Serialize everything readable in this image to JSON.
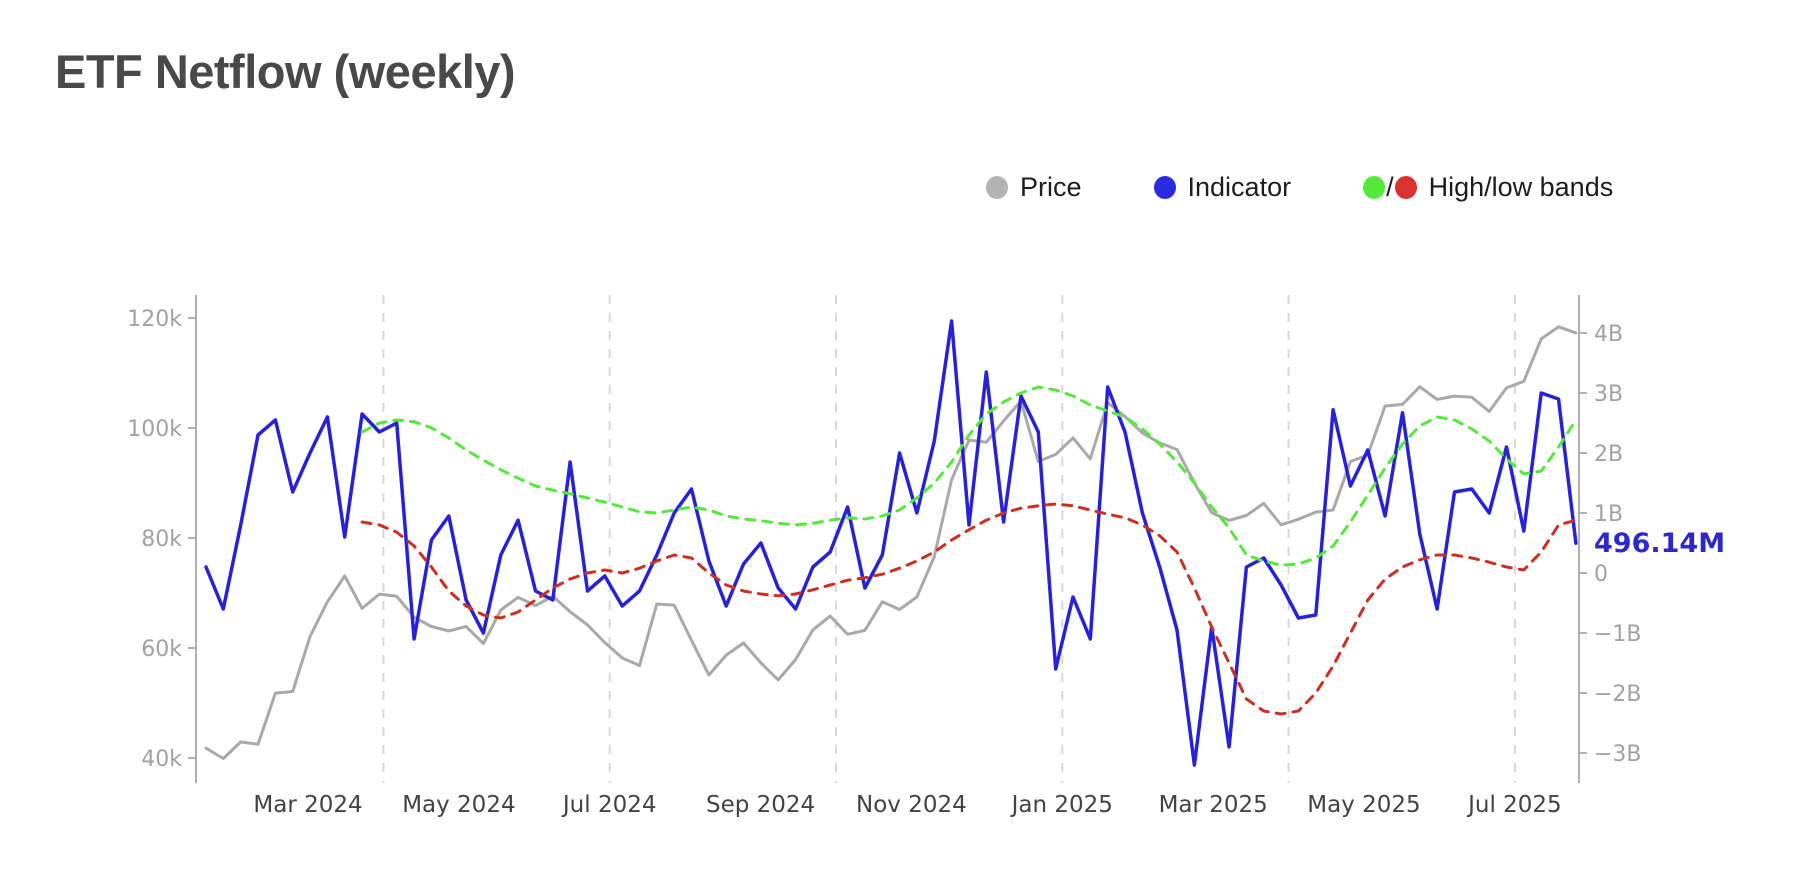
{
  "title": "ETF Netflow (weekly)",
  "legend": {
    "separator": "/",
    "items": [
      {
        "label": "Price",
        "color": "#b3b3b3"
      },
      {
        "label": "Indicator",
        "color": "#2a2ae0"
      },
      {
        "label": "High/low bands",
        "color_high": "#55e93c",
        "color_low": "#d93030"
      }
    ]
  },
  "chart_data": {
    "type": "line",
    "title": "ETF Netflow (weekly)",
    "x_unit": "week",
    "x_start": "2024-01-22",
    "x_step_days": 7,
    "n_points": 80,
    "grid": "vertical-dashed-quarterly",
    "legend_position": "top-right",
    "x_axis": {
      "labels": [
        {
          "text": "Mar 2024",
          "month": 0
        },
        {
          "text": "May 2024",
          "month": 2
        },
        {
          "text": "Jul 2024",
          "month": 4
        },
        {
          "text": "Sep 2024",
          "month": 6
        },
        {
          "text": "Nov 2024",
          "month": 8
        },
        {
          "text": "Jan 2025",
          "month": 10
        },
        {
          "text": "Mar 2025",
          "month": 12
        },
        {
          "text": "May 2025",
          "month": 14
        },
        {
          "text": "Jul 2025",
          "month": 16
        }
      ],
      "gridline_months": [
        1,
        4,
        7,
        10,
        13,
        16
      ]
    },
    "left_axis": {
      "unit": "USD (thousands)",
      "range": [
        40,
        120
      ],
      "ticks": [
        {
          "label": "120k",
          "value": 120
        },
        {
          "label": "100k",
          "value": 100
        },
        {
          "label": "80k",
          "value": 80
        },
        {
          "label": "60k",
          "value": 60
        },
        {
          "label": "40k",
          "value": 40
        }
      ]
    },
    "right_axis": {
      "unit": "USD (billions)",
      "range": [
        -3,
        4
      ],
      "ticks": [
        {
          "label": "4B",
          "value": 4
        },
        {
          "label": "3B",
          "value": 3
        },
        {
          "label": "2B",
          "value": 2
        },
        {
          "label": "1B",
          "value": 1
        },
        {
          "label": "0",
          "value": 0
        },
        {
          "label": "−1B",
          "value": -1
        },
        {
          "label": "−2B",
          "value": -2
        },
        {
          "label": "−3B",
          "value": -3
        }
      ],
      "current_value": 0.49614,
      "current_value_label": "496.14M"
    },
    "series": [
      {
        "name": "Price",
        "axis": "left",
        "color": "#a9a9a9",
        "style": "solid",
        "width": 3,
        "values": [
          41.8,
          39.9,
          42.9,
          42.5,
          51.8,
          52.1,
          62.1,
          68.4,
          73.1,
          67.2,
          69.8,
          69.4,
          65.6,
          63.9,
          63.1,
          63.9,
          60.8,
          66.9,
          69.2,
          67.7,
          69.4,
          66.6,
          64.2,
          61.0,
          58.2,
          56.8,
          68.0,
          67.8,
          61.4,
          55.1,
          58.7,
          60.9,
          57.3,
          54.2,
          57.9,
          63.3,
          65.8,
          62.5,
          63.2,
          68.4,
          67.0,
          69.3,
          76.6,
          90.6,
          97.8,
          97.4,
          101.3,
          104.9,
          93.9,
          95.2,
          98.2,
          94.4,
          104.6,
          102.1,
          99.1,
          97.3,
          96.1,
          90.0,
          84.6,
          83.2,
          84.1,
          86.3,
          82.4,
          83.4,
          84.7,
          85.1,
          93.9,
          95.1,
          104.0,
          104.3,
          107.5,
          105.2,
          105.8,
          105.6,
          103.0,
          107.3,
          108.5,
          116.2,
          118.4,
          117.3
        ]
      },
      {
        "name": "Indicator",
        "axis": "right",
        "color": "#2722d8",
        "style": "solid",
        "width": 3.5,
        "values": [
          0.1,
          -0.6,
          0.8,
          2.3,
          2.55,
          1.35,
          2.0,
          2.6,
          0.6,
          2.65,
          2.35,
          2.5,
          -1.1,
          0.55,
          0.95,
          -0.45,
          -1.0,
          0.3,
          0.88,
          -0.3,
          -0.45,
          1.85,
          -0.3,
          -0.05,
          -0.55,
          -0.3,
          0.3,
          1.0,
          1.4,
          0.2,
          -0.55,
          0.15,
          0.5,
          -0.25,
          -0.6,
          0.1,
          0.35,
          1.1,
          -0.25,
          0.3,
          2.0,
          1.0,
          2.2,
          4.2,
          0.8,
          3.35,
          0.85,
          2.95,
          2.35,
          -1.6,
          -0.4,
          -1.1,
          3.1,
          2.35,
          1.0,
          0.1,
          -0.95,
          -3.2,
          -0.9,
          -2.9,
          0.1,
          0.25,
          -0.2,
          -0.75,
          -0.7,
          2.72,
          1.45,
          2.05,
          0.95,
          2.67,
          0.65,
          -0.6,
          1.35,
          1.4,
          1.0,
          2.1,
          0.7,
          3.0,
          2.9,
          0.49614
        ]
      },
      {
        "name": "High band",
        "axis": "right",
        "color": "#55e93c",
        "style": "dashed",
        "width": 3,
        "values": [
          null,
          null,
          null,
          null,
          null,
          null,
          null,
          null,
          null,
          2.35,
          2.5,
          2.55,
          2.52,
          2.42,
          2.25,
          2.05,
          1.88,
          1.72,
          1.58,
          1.45,
          1.38,
          1.32,
          1.25,
          1.18,
          1.1,
          1.02,
          1.0,
          1.05,
          1.1,
          1.05,
          0.95,
          0.9,
          0.87,
          0.83,
          0.8,
          0.83,
          0.88,
          0.92,
          0.9,
          0.95,
          1.05,
          1.25,
          1.5,
          1.85,
          2.3,
          2.65,
          2.85,
          3.0,
          3.1,
          3.05,
          2.95,
          2.8,
          2.7,
          2.6,
          2.4,
          2.15,
          1.85,
          1.5,
          1.1,
          0.75,
          0.3,
          0.2,
          0.13,
          0.15,
          0.25,
          0.45,
          0.85,
          1.3,
          1.75,
          2.15,
          2.45,
          2.6,
          2.55,
          2.4,
          2.2,
          1.9,
          1.65,
          1.7,
          2.1,
          2.55
        ]
      },
      {
        "name": "Low band",
        "axis": "right",
        "color": "#cd2f22",
        "style": "dashed",
        "width": 3,
        "values": [
          null,
          null,
          null,
          null,
          null,
          null,
          null,
          null,
          null,
          0.85,
          0.8,
          0.68,
          0.45,
          0.1,
          -0.3,
          -0.55,
          -0.7,
          -0.75,
          -0.65,
          -0.45,
          -0.25,
          -0.1,
          0.0,
          0.05,
          0.0,
          0.08,
          0.2,
          0.3,
          0.25,
          0.0,
          -0.2,
          -0.3,
          -0.35,
          -0.38,
          -0.35,
          -0.28,
          -0.2,
          -0.12,
          -0.08,
          -0.02,
          0.08,
          0.2,
          0.35,
          0.55,
          0.72,
          0.88,
          1.0,
          1.08,
          1.12,
          1.15,
          1.12,
          1.05,
          0.98,
          0.92,
          0.8,
          0.62,
          0.35,
          -0.25,
          -0.9,
          -1.5,
          -2.1,
          -2.3,
          -2.35,
          -2.3,
          -2.0,
          -1.55,
          -1.0,
          -0.45,
          -0.1,
          0.1,
          0.22,
          0.3,
          0.3,
          0.25,
          0.18,
          0.1,
          0.05,
          0.35,
          0.8,
          0.88
        ]
      }
    ]
  }
}
